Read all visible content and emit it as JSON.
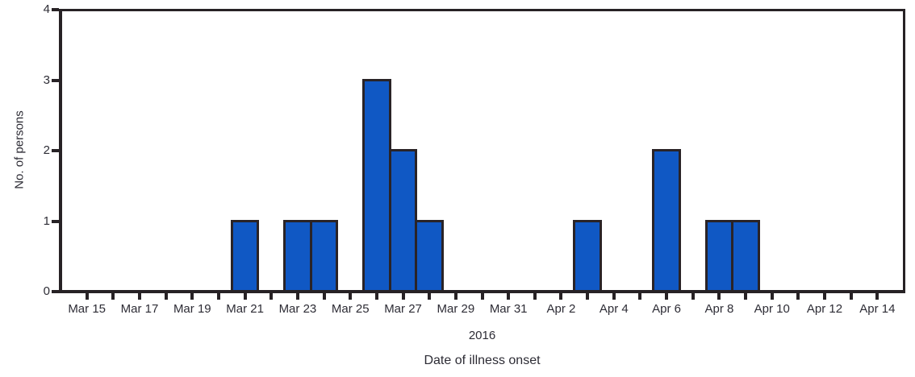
{
  "figure": {
    "colors": {
      "bar_fill": "#1058c4",
      "bar_border": "#2a2326",
      "axis": "#272225",
      "text": "#2d2c35",
      "background": "#ffffff"
    }
  },
  "chart_data": {
    "type": "bar",
    "title": "",
    "ylabel": "No. of persons",
    "xlabel": "Date of illness onset",
    "year_label": "2016",
    "ylim": [
      0,
      4
    ],
    "yticks": [
      "0",
      "1",
      "2",
      "3",
      "4"
    ],
    "grid": false,
    "legend": false,
    "frame": "full-box",
    "x_tick_label_interval": 2,
    "days": [
      "Mar 15",
      "Mar 16",
      "Mar 17",
      "Mar 18",
      "Mar 19",
      "Mar 20",
      "Mar 21",
      "Mar 22",
      "Mar 23",
      "Mar 24",
      "Mar 25",
      "Mar 26",
      "Mar 27",
      "Mar 28",
      "Mar 29",
      "Mar 30",
      "Mar 31",
      "Apr 1",
      "Apr 2",
      "Apr 3",
      "Apr 4",
      "Apr 5",
      "Apr 6",
      "Apr 7",
      "Apr 8",
      "Apr 9",
      "Apr 10",
      "Apr 11",
      "Apr 12",
      "Apr 13",
      "Apr 14"
    ],
    "x_labeled_ticks": [
      "Mar 15",
      "Mar 17",
      "Mar 19",
      "Mar 21",
      "Mar 23",
      "Mar 25",
      "Mar 27",
      "Mar 29",
      "Mar 31",
      "Apr 2",
      "Apr 4",
      "Apr 6",
      "Apr 8",
      "Apr 10",
      "Apr 12",
      "Apr 14"
    ],
    "bars": [
      {
        "date": "Mar 21",
        "value": 1
      },
      {
        "date": "Mar 23",
        "value": 1
      },
      {
        "date": "Mar 24",
        "value": 1
      },
      {
        "date": "Mar 26",
        "value": 3
      },
      {
        "date": "Mar 27",
        "value": 2
      },
      {
        "date": "Mar 28",
        "value": 1
      },
      {
        "date": "Apr 3",
        "value": 1
      },
      {
        "date": "Apr 6",
        "value": 2
      },
      {
        "date": "Apr 8",
        "value": 1
      },
      {
        "date": "Apr 9",
        "value": 1
      }
    ]
  }
}
